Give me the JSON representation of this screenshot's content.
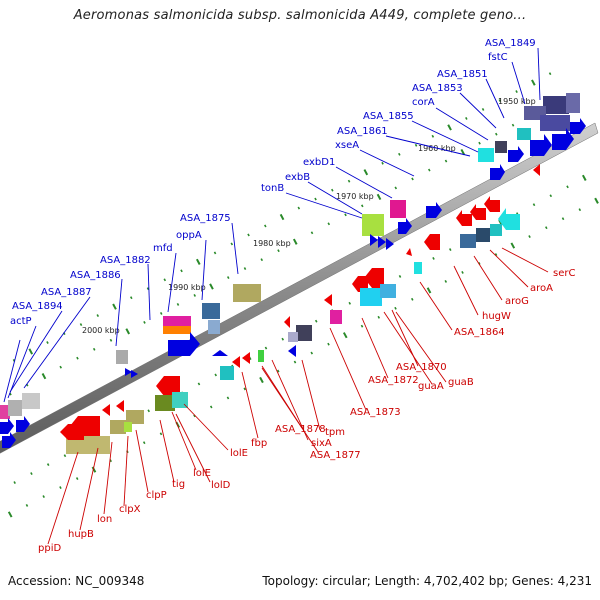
{
  "title": "Aeromonas salmonicida subsp. salmonicida A449, complete geno...",
  "footer": {
    "accession": "Accession: NC_009348",
    "summary": "Topology: circular; Length: 4,702,402 bp; Genes: 4,231"
  },
  "colors": {
    "forward_label": "#0000cc",
    "reverse_label": "#cc0000",
    "backbone": "#8a8a8a",
    "tick": "#2a8a2a"
  },
  "scale_ticks": [
    "1950 kbp",
    "1960 kbp",
    "1970 kbp",
    "1980 kbp",
    "1990 kbp",
    "2000 kbp"
  ],
  "forward_genes": [
    "ASA_1849",
    "fstC",
    "ASA_1851",
    "ASA_1853",
    "corA",
    "ASA_1855",
    "ASA_1861",
    "xseA",
    "exbD1",
    "exbB",
    "tonB",
    "ASA_1875",
    "oppA",
    "mfd",
    "ASA_1882",
    "ASA_1886",
    "ASA_1887",
    "ASA_1894",
    "actP"
  ],
  "reverse_genes": [
    "serC",
    "aroA",
    "aroG",
    "hugW",
    "ASA_1864",
    "ASA_1870",
    "guaA",
    "guaB",
    "ASA_1872",
    "ASA_1873",
    "tpm",
    "sixA",
    "ASA_1878",
    "ASA_1877",
    "fbp",
    "lolE",
    "lolE",
    "lolD",
    "tig",
    "clpP",
    "clpX",
    "lon",
    "hupB",
    "ppiD"
  ]
}
